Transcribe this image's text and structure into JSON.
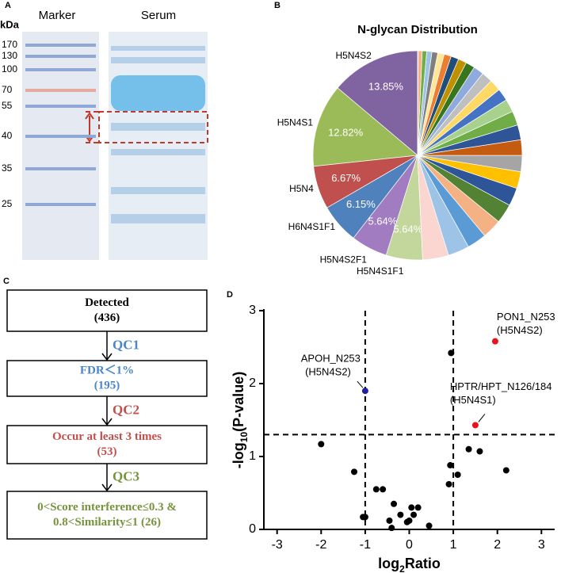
{
  "panel_labels": [
    "A",
    "B",
    "C",
    "D"
  ],
  "gel": {
    "unit": "kDa",
    "lanes": [
      "Marker",
      "Serum"
    ],
    "markers": [
      170,
      130,
      100,
      70,
      55,
      40,
      35,
      25
    ]
  },
  "flowchart": {
    "steps": [
      {
        "lines": [
          "Detected",
          "(436)"
        ],
        "color": "#000000"
      },
      {
        "lines": [
          "FDR＜1%",
          "(195)"
        ],
        "color": "#4a86c8"
      },
      {
        "lines": [
          "Occur at least 3 times",
          "(53)"
        ],
        "color": "#c0504d"
      },
      {
        "lines": [
          "0<Score interference≤0.3 &",
          "0.8<Similarity≤1 (26)"
        ],
        "color": "#77933c"
      }
    ],
    "qc": [
      {
        "text": "QC1",
        "color": "#4a86c8"
      },
      {
        "text": "QC2",
        "color": "#c0504d"
      },
      {
        "text": "QC3",
        "color": "#77933c"
      }
    ]
  },
  "chart_data": [
    {
      "type": "pie",
      "title": "N-glycan Distribution",
      "categories": [
        "H5N4S2",
        "H5N4S1",
        "H5N4",
        "H6N4S1F1",
        "H5N4S2F1",
        "H5N4S1F1",
        null,
        null,
        null,
        null,
        null,
        null,
        null,
        null,
        null,
        null,
        null,
        null,
        null,
        null,
        null,
        null,
        null,
        null,
        null,
        null,
        null,
        null,
        null,
        null,
        null,
        null
      ],
      "values": [
        13.85,
        12.82,
        6.67,
        6.15,
        5.64,
        5.64,
        4.0,
        3.3,
        3.0,
        3.0,
        3.0,
        2.8,
        2.6,
        2.5,
        2.4,
        2.3,
        2.2,
        2.0,
        1.9,
        1.8,
        1.7,
        1.6,
        1.4,
        1.3,
        1.2,
        1.1,
        1.0,
        0.9,
        0.8,
        0.7,
        0.6,
        0.1
      ],
      "value_labels": [
        "13.85%",
        "12.82%",
        "6.67%",
        "6.15%",
        "5.64%",
        "5.64%",
        null,
        null,
        null,
        null,
        null,
        null,
        null,
        null,
        null,
        null,
        null,
        null,
        null,
        null,
        null,
        null,
        null,
        null,
        null,
        null,
        null,
        null,
        null,
        null,
        null,
        null
      ],
      "colors": [
        "#8064a2",
        "#9bbb59",
        "#c0504d",
        "#4f81bd",
        "#a17cc0",
        "#c3d69b",
        "#fbd5cf",
        "#9dc3e6",
        "#5b9bd5",
        "#f4b183",
        "#548235",
        "#2e5597",
        "#ffc000",
        "#a5a5a5",
        "#c55a11",
        "#2f5597",
        "#70ad47",
        "#a9d18e",
        "#4472c4",
        "#ffd966",
        "#bfbfbf",
        "#8faadc",
        "#38761d",
        "#bf9000",
        "#1f4e79",
        "#ed7d31",
        "#ffe699",
        "#7f7f7f",
        "#9dc3e6",
        "#70ad47",
        "#f4b183",
        "#4472c4"
      ]
    },
    {
      "type": "scatter",
      "xlabel": [
        "log",
        "2",
        "Ratio"
      ],
      "ylabel": [
        "-log",
        "10",
        "(P-value)"
      ],
      "xlim": [
        -3.3,
        3.3
      ],
      "ylim": [
        0,
        3
      ],
      "xticks": [
        -3,
        -2,
        -1,
        0,
        1,
        2,
        3
      ],
      "yticks": [
        0,
        1,
        2,
        3
      ],
      "vlines": [
        -1,
        1
      ],
      "hlines": [
        1.3
      ],
      "series": [
        {
          "color": "#000000",
          "x": [
            -2.0,
            -1.25,
            -1.05,
            -1.0,
            -0.75,
            -0.6,
            -0.45,
            -0.4,
            -0.35,
            -0.2,
            -0.05,
            0.0,
            0.05,
            0.1,
            0.2,
            0.45,
            0.9,
            0.93,
            0.95,
            1.1,
            1.35,
            1.6,
            2.2
          ],
          "y": [
            1.17,
            0.79,
            0.17,
            0.17,
            0.55,
            0.55,
            0.12,
            0.02,
            0.35,
            0.2,
            0.1,
            0.12,
            0.3,
            0.2,
            0.3,
            0.05,
            0.62,
            0.88,
            2.42,
            0.75,
            1.1,
            1.07,
            0.81
          ]
        },
        {
          "color": "#1f1fa0",
          "x": [
            -1.0
          ],
          "y": [
            1.9
          ]
        },
        {
          "color": "#e8141b",
          "x": [
            1.95,
            1.5
          ],
          "y": [
            2.58,
            1.43
          ]
        }
      ],
      "annotations": [
        {
          "lines": [
            "PON1_N253",
            "(H5N4S2)"
          ]
        },
        {
          "lines": [
            "APOH_N253",
            "(H5N4S2)"
          ]
        },
        {
          "lines": [
            "HPTR/HPT_N126/184",
            "(H5N4S1)"
          ]
        }
      ]
    }
  ]
}
